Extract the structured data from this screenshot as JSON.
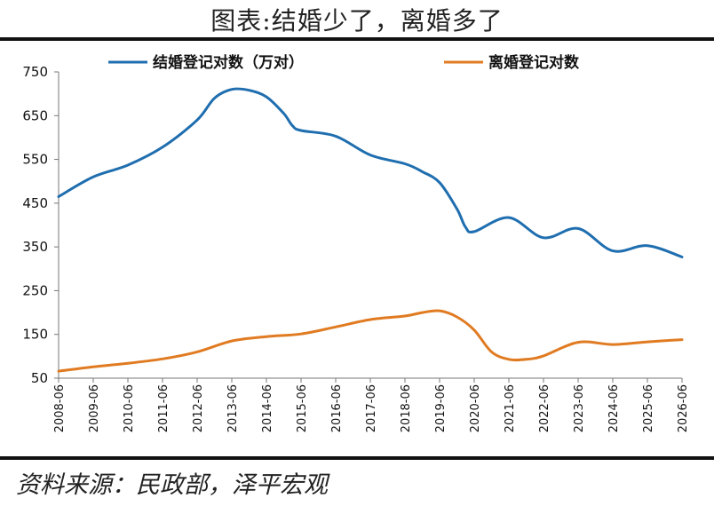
{
  "title": "图表:结婚少了，离婚多了",
  "source": "资料来源：民政部，泽平宏观",
  "chart_data": {
    "type": "line",
    "categories": [
      "2008-06",
      "2009-06",
      "2010-06",
      "2011-06",
      "2012-06",
      "2013-06",
      "2014-06",
      "2015-06",
      "2016-06",
      "2017-06",
      "2018-06",
      "2019-06",
      "2020-06",
      "2021-06",
      "2022-06",
      "2023-06",
      "2024-06",
      "2025-06",
      "2026-06"
    ],
    "x_start": "2008-06",
    "x_end": "2026-06",
    "ylim": [
      50,
      750
    ],
    "yticks": [
      750,
      650,
      550,
      450,
      350,
      250,
      150,
      50
    ],
    "grid": false,
    "legend_position": "top",
    "series": [
      {
        "name": "结婚登记对数（万对）",
        "color": "#1f6eaf",
        "points": [
          [
            "2008-06",
            465
          ],
          [
            "2009-06",
            510
          ],
          [
            "2010-06",
            537
          ],
          [
            "2011-06",
            578
          ],
          [
            "2012-06",
            640
          ],
          [
            "2012-12",
            690
          ],
          [
            "2013-06",
            710
          ],
          [
            "2013-12",
            708
          ],
          [
            "2014-06",
            693
          ],
          [
            "2014-12",
            655
          ],
          [
            "2015-03",
            627
          ],
          [
            "2015-06",
            616
          ],
          [
            "2016-06",
            603
          ],
          [
            "2017-06",
            560
          ],
          [
            "2018-06",
            540
          ],
          [
            "2018-12",
            522
          ],
          [
            "2019-06",
            497
          ],
          [
            "2019-12",
            437
          ],
          [
            "2020-03",
            395
          ],
          [
            "2020-06",
            385
          ],
          [
            "2021-06",
            417
          ],
          [
            "2022-06",
            371
          ],
          [
            "2023-06",
            392
          ],
          [
            "2024-06",
            341
          ],
          [
            "2025-06",
            353
          ],
          [
            "2026-06",
            327
          ]
        ]
      },
      {
        "name": "离婚登记对数",
        "color": "#e07b22",
        "points": [
          [
            "2008-06",
            66
          ],
          [
            "2009-06",
            76
          ],
          [
            "2010-06",
            84
          ],
          [
            "2011-06",
            94
          ],
          [
            "2012-06",
            110
          ],
          [
            "2013-06",
            135
          ],
          [
            "2014-06",
            145
          ],
          [
            "2015-06",
            151
          ],
          [
            "2016-06",
            167
          ],
          [
            "2017-06",
            184
          ],
          [
            "2018-06",
            192
          ],
          [
            "2018-12",
            200
          ],
          [
            "2019-06",
            204
          ],
          [
            "2019-12",
            190
          ],
          [
            "2020-06",
            160
          ],
          [
            "2020-12",
            110
          ],
          [
            "2021-06",
            93
          ],
          [
            "2021-12",
            93
          ],
          [
            "2022-06",
            101
          ],
          [
            "2023-06",
            132
          ],
          [
            "2024-06",
            127
          ],
          [
            "2025-06",
            133
          ],
          [
            "2026-06",
            138
          ]
        ]
      }
    ]
  }
}
